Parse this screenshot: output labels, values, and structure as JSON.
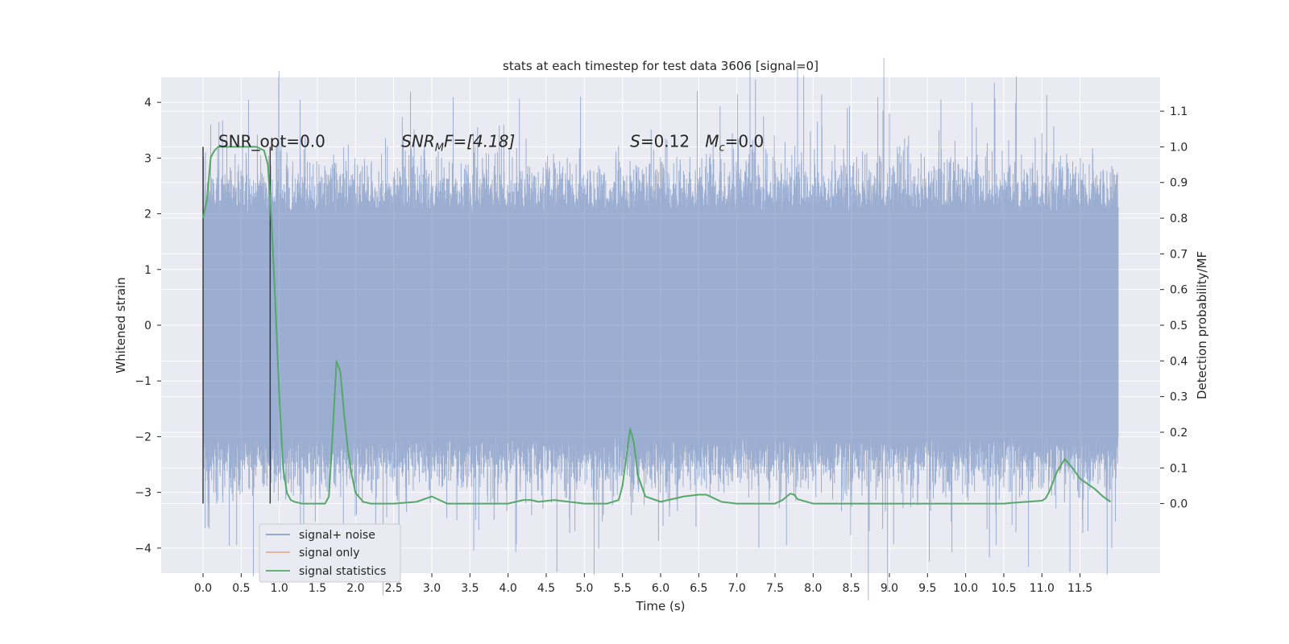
{
  "chart_data": {
    "type": "line",
    "title": "stats at each timestep for test data 3606 [signal=0]",
    "xlabel": "Time (s)",
    "ylabel": "Whitened strain",
    "ylabel_right": "Detection probability/MF",
    "xlim": [
      -0.55,
      12.55
    ],
    "ylim": [
      -4.45,
      4.45
    ],
    "ylim_right": [
      -0.195,
      1.195
    ],
    "x_ticks": [
      0.0,
      0.5,
      1.0,
      1.5,
      2.0,
      2.5,
      3.0,
      3.5,
      4.0,
      4.5,
      5.0,
      5.5,
      6.0,
      6.5,
      7.0,
      7.5,
      8.0,
      8.5,
      9.0,
      9.5,
      10.0,
      10.5,
      11.0,
      11.5
    ],
    "x_tick_labels": [
      "0.0",
      "0.5",
      "1.0",
      "1.5",
      "2.0",
      "2.5",
      "3.0",
      "3.5",
      "4.0",
      "4.5",
      "5.0",
      "5.5",
      "6.0",
      "6.5",
      "7.0",
      "7.5",
      "8.0",
      "8.5",
      "9.0",
      "9.5",
      "10.0",
      "10.5",
      "11.0",
      "11.5"
    ],
    "y_ticks": [
      -4,
      -3,
      -2,
      -1,
      0,
      1,
      2,
      3,
      4
    ],
    "y_tick_labels": [
      "−4",
      "−3",
      "−2",
      "−1",
      "0",
      "1",
      "2",
      "3",
      "4"
    ],
    "y_ticks_right": [
      0.0,
      0.1,
      0.2,
      0.3,
      0.4,
      0.5,
      0.6,
      0.7,
      0.8,
      0.9,
      1.0,
      1.1
    ],
    "y_tick_labels_right": [
      "0.0",
      "0.1",
      "0.2",
      "0.3",
      "0.4",
      "0.5",
      "0.6",
      "0.7",
      "0.8",
      "0.9",
      "1.0",
      "1.1"
    ],
    "grid": true,
    "legend_position": "lower-left",
    "noise_series": {
      "name": "signal+ noise",
      "color": "#4c72b0",
      "x_range": [
        0.0,
        12.0
      ],
      "typical_range": [
        -2.0,
        2.0
      ],
      "peaks": [
        {
          "x": 0.1,
          "y": 3.6
        },
        {
          "x": 0.08,
          "y": -3.65
        },
        {
          "x": 4.95,
          "y": 4.1
        },
        {
          "x": 5.25,
          "y": -3.4
        },
        {
          "x": 3.55,
          "y": -4.05
        },
        {
          "x": 9.0,
          "y": 3.8
        },
        {
          "x": 10.4,
          "y": -3.95
        },
        {
          "x": 7.35,
          "y": 3.75
        },
        {
          "x": 7.65,
          "y": -3.95
        },
        {
          "x": 3.6,
          "y": 3.55
        },
        {
          "x": 11.0,
          "y": 3.45
        },
        {
          "x": 9.65,
          "y": 3.5
        }
      ]
    },
    "signal_series": {
      "name": "signal only",
      "color": "#dd8452",
      "visible_data": false
    },
    "stats_series": {
      "name": "signal statistics",
      "color": "#55a868",
      "axis": "right",
      "x": [
        0.0,
        0.05,
        0.1,
        0.15,
        0.2,
        0.3,
        0.5,
        0.7,
        0.8,
        0.85,
        0.9,
        0.95,
        1.0,
        1.05,
        1.1,
        1.15,
        1.2,
        1.3,
        1.5,
        1.6,
        1.65,
        1.7,
        1.75,
        1.8,
        1.85,
        1.9,
        1.95,
        2.0,
        2.1,
        2.2,
        2.5,
        2.8,
        3.0,
        3.1,
        3.2,
        4.0,
        4.2,
        4.3,
        4.4,
        4.6,
        4.8,
        5.0,
        5.3,
        5.45,
        5.5,
        5.55,
        5.6,
        5.65,
        5.7,
        5.8,
        6.0,
        6.3,
        6.5,
        6.6,
        6.7,
        6.8,
        7.0,
        7.5,
        7.6,
        7.7,
        7.75,
        7.8,
        8.0,
        9.0,
        10.5,
        10.6,
        10.8,
        11.0,
        11.05,
        11.1,
        11.2,
        11.3,
        11.4,
        11.5,
        11.7,
        11.8,
        11.9
      ],
      "values": [
        0.8,
        0.85,
        0.97,
        0.99,
        1.0,
        1.0,
        1.0,
        1.0,
        0.99,
        0.95,
        0.78,
        0.55,
        0.3,
        0.1,
        0.03,
        0.01,
        0.005,
        0.0,
        0.0,
        0.0,
        0.02,
        0.2,
        0.4,
        0.37,
        0.25,
        0.15,
        0.08,
        0.03,
        0.005,
        0.0,
        0.0,
        0.005,
        0.02,
        0.01,
        0.0,
        0.0,
        0.01,
        0.01,
        0.005,
        0.01,
        0.005,
        0.0,
        0.0,
        0.01,
        0.05,
        0.13,
        0.21,
        0.17,
        0.08,
        0.02,
        0.005,
        0.02,
        0.025,
        0.025,
        0.015,
        0.005,
        0.0,
        0.0,
        0.01,
        0.028,
        0.025,
        0.012,
        0.0,
        0.0,
        0.0,
        0.002,
        0.005,
        0.008,
        0.015,
        0.035,
        0.09,
        0.125,
        0.1,
        0.07,
        0.04,
        0.02,
        0.005
      ]
    },
    "vertical_markers": [
      {
        "x": 0.0,
        "y_range": [
          -3.2,
          3.2
        ],
        "color": "#333333"
      },
      {
        "x": 0.88,
        "y_range": [
          -3.2,
          3.2
        ],
        "color": "#333333"
      }
    ],
    "annotations": [
      {
        "id": "snr_opt",
        "text": "SNR_opt=0.0",
        "x": 0.2,
        "y": 3.2
      },
      {
        "id": "snr_mf",
        "text_parts": [
          "SNR",
          "M",
          "F=[4.18]"
        ],
        "x": 2.6,
        "y": 3.2
      },
      {
        "id": "s_mc",
        "text_parts": [
          "S",
          "=0.12   ",
          "M",
          "c",
          "=0.0"
        ],
        "x": 5.6,
        "y": 3.2
      }
    ]
  }
}
